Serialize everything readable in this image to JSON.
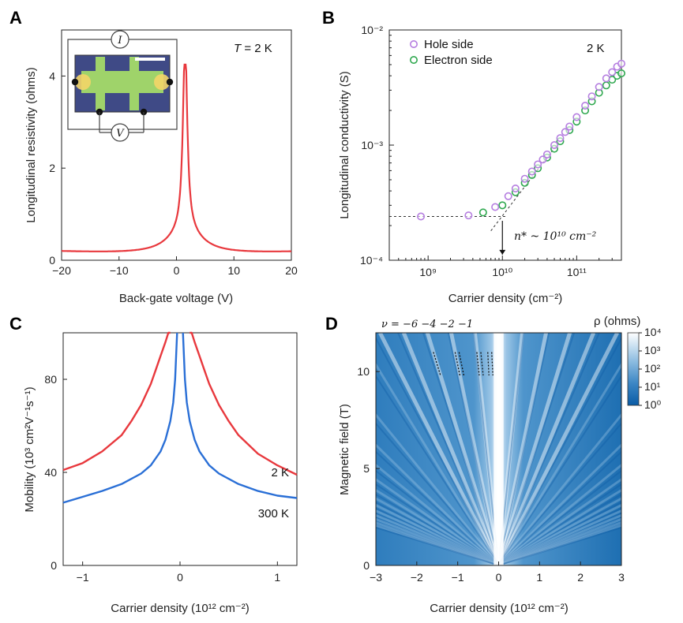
{
  "chart_data": [
    {
      "panel": "A",
      "type": "line",
      "xlabel": "Back-gate voltage (V)",
      "ylabel": "Longitudinal resistivity (ohms)",
      "xlim": [
        -20,
        20
      ],
      "ylim": [
        0,
        5
      ],
      "xticks": [
        "−20",
        "−10",
        "0",
        "10",
        "20"
      ],
      "yticks": [
        "0",
        "2",
        "4"
      ],
      "annotation_T": "T",
      "annotation_rest": " = 2 K",
      "inset_labels": [
        "I",
        "V"
      ],
      "color": "#e8383d",
      "peak_x": 1.5,
      "peak_y": 4.25,
      "x": [
        -20,
        -15,
        -10,
        -7,
        -5,
        -3,
        -2,
        -1,
        0,
        0.5,
        1,
        1.3,
        1.5,
        1.7,
        2,
        2.5,
        3,
        4,
        5,
        7,
        10,
        15,
        20
      ],
      "y": [
        0.12,
        0.15,
        0.19,
        0.25,
        0.3,
        0.42,
        0.55,
        0.8,
        1.3,
        2.0,
        3.3,
        4.0,
        4.25,
        4.0,
        3.0,
        1.7,
        1.1,
        0.65,
        0.45,
        0.3,
        0.2,
        0.15,
        0.12
      ]
    },
    {
      "panel": "B",
      "type": "scatter",
      "xlabel": "Carrier density (cm⁻²)",
      "ylabel": "Longitudinal conductivity (S)",
      "xscale": "log",
      "yscale": "log",
      "xlim": [
        300000000.0,
        400000000000.0
      ],
      "ylim": [
        0.0001,
        0.01
      ],
      "xticks": [
        "10⁹",
        "10¹⁰",
        "10¹¹"
      ],
      "yticks": [
        "10⁻⁴",
        "10⁻³",
        "10⁻²"
      ],
      "annotation": "2 K",
      "nstar": "n* ~ 10¹⁰ cm⁻²",
      "series": [
        {
          "name": "Hole side",
          "color": "#b57ee0",
          "x": [
            800000000.0,
            3500000000.0,
            8000000000.0,
            12000000000.0,
            15000000000.0,
            20000000000.0,
            25000000000.0,
            30000000000.0,
            35000000000.0,
            40000000000.0,
            50000000000.0,
            60000000000.0,
            70000000000.0,
            80000000000.0,
            100000000000.0,
            130000000000.0,
            160000000000.0,
            200000000000.0,
            250000000000.0,
            300000000000.0,
            350000000000.0,
            400000000000.0
          ],
          "y": [
            0.00024,
            0.000245,
            0.00029,
            0.00036,
            0.00042,
            0.00051,
            0.00059,
            0.00068,
            0.00075,
            0.00083,
            0.001,
            0.00115,
            0.0013,
            0.00145,
            0.00175,
            0.0022,
            0.00265,
            0.0032,
            0.0038,
            0.0043,
            0.0048,
            0.0051
          ]
        },
        {
          "name": "Electron side",
          "color": "#2fa84f",
          "x": [
            5500000000.0,
            10000000000.0,
            15000000000.0,
            20000000000.0,
            25000000000.0,
            30000000000.0,
            40000000000.0,
            50000000000.0,
            60000000000.0,
            80000000000.0,
            100000000000.0,
            130000000000.0,
            160000000000.0,
            200000000000.0,
            250000000000.0,
            300000000000.0,
            350000000000.0,
            400000000000.0
          ],
          "y": [
            0.00026,
            0.0003,
            0.00039,
            0.00047,
            0.00055,
            0.00063,
            0.00078,
            0.00093,
            0.00108,
            0.00135,
            0.0016,
            0.002,
            0.0024,
            0.00285,
            0.0033,
            0.0037,
            0.004,
            0.0042
          ]
        }
      ]
    },
    {
      "panel": "C",
      "type": "line",
      "xlabel": "Carrier density (10¹² cm⁻²)",
      "ylabel": "Mobility (10³ cm²V⁻¹s⁻¹)",
      "xlim": [
        -1.2,
        1.2
      ],
      "ylim": [
        0,
        100
      ],
      "xticks": [
        "−1",
        "0",
        "1"
      ],
      "yticks": [
        "0",
        "40",
        "80"
      ],
      "series": [
        {
          "name": "2 K",
          "color": "#e8383d",
          "x": [
            -1.2,
            -1.0,
            -0.8,
            -0.6,
            -0.5,
            -0.4,
            -0.3,
            -0.25,
            -0.2,
            -0.15,
            -0.12,
            -0.1,
            0.1,
            0.12,
            0.15,
            0.2,
            0.25,
            0.3,
            0.4,
            0.5,
            0.6,
            0.8,
            1.0,
            1.2
          ],
          "y": [
            41,
            44,
            49,
            56,
            62,
            69,
            78,
            84,
            90,
            96,
            100,
            100,
            100,
            100,
            96,
            90,
            84,
            78,
            69,
            62,
            56,
            48,
            43,
            39
          ]
        },
        {
          "name": "300 K",
          "color": "#2a6fd6",
          "x": [
            -1.2,
            -1.0,
            -0.8,
            -0.6,
            -0.4,
            -0.3,
            -0.2,
            -0.15,
            -0.1,
            -0.07,
            -0.05,
            -0.03,
            0.03,
            0.05,
            0.07,
            0.1,
            0.15,
            0.2,
            0.3,
            0.4,
            0.6,
            0.8,
            1.0,
            1.2
          ],
          "y": [
            27,
            29.5,
            32,
            35,
            39.5,
            43,
            49,
            54,
            62,
            70,
            80,
            100,
            100,
            80,
            70,
            62,
            54,
            49,
            43,
            39.5,
            35,
            32,
            30,
            29
          ]
        }
      ]
    },
    {
      "panel": "D",
      "type": "heatmap",
      "xlabel": "Carrier density (10¹² cm⁻²)",
      "ylabel": "Magnetic field (T)",
      "xlim": [
        -3,
        3
      ],
      "ylim": [
        0,
        12
      ],
      "xticks": [
        "−3",
        "−2",
        "−1",
        "0",
        "1",
        "2",
        "3"
      ],
      "yticks": [
        "0",
        "5",
        "10"
      ],
      "colorbar_label": "ρ (ohms)",
      "colorbar_ticks": [
        "10⁰",
        "10¹",
        "10²",
        "10³",
        "10⁴"
      ],
      "filling_label": "ν = −6   −4  −2  −1",
      "filling_factors": [
        -6,
        -4,
        -2,
        -1
      ],
      "cmap": [
        "#0a5ca6",
        "#3b86c4",
        "#8bbbe0",
        "#d3e6f4",
        "#ffffff"
      ]
    }
  ]
}
